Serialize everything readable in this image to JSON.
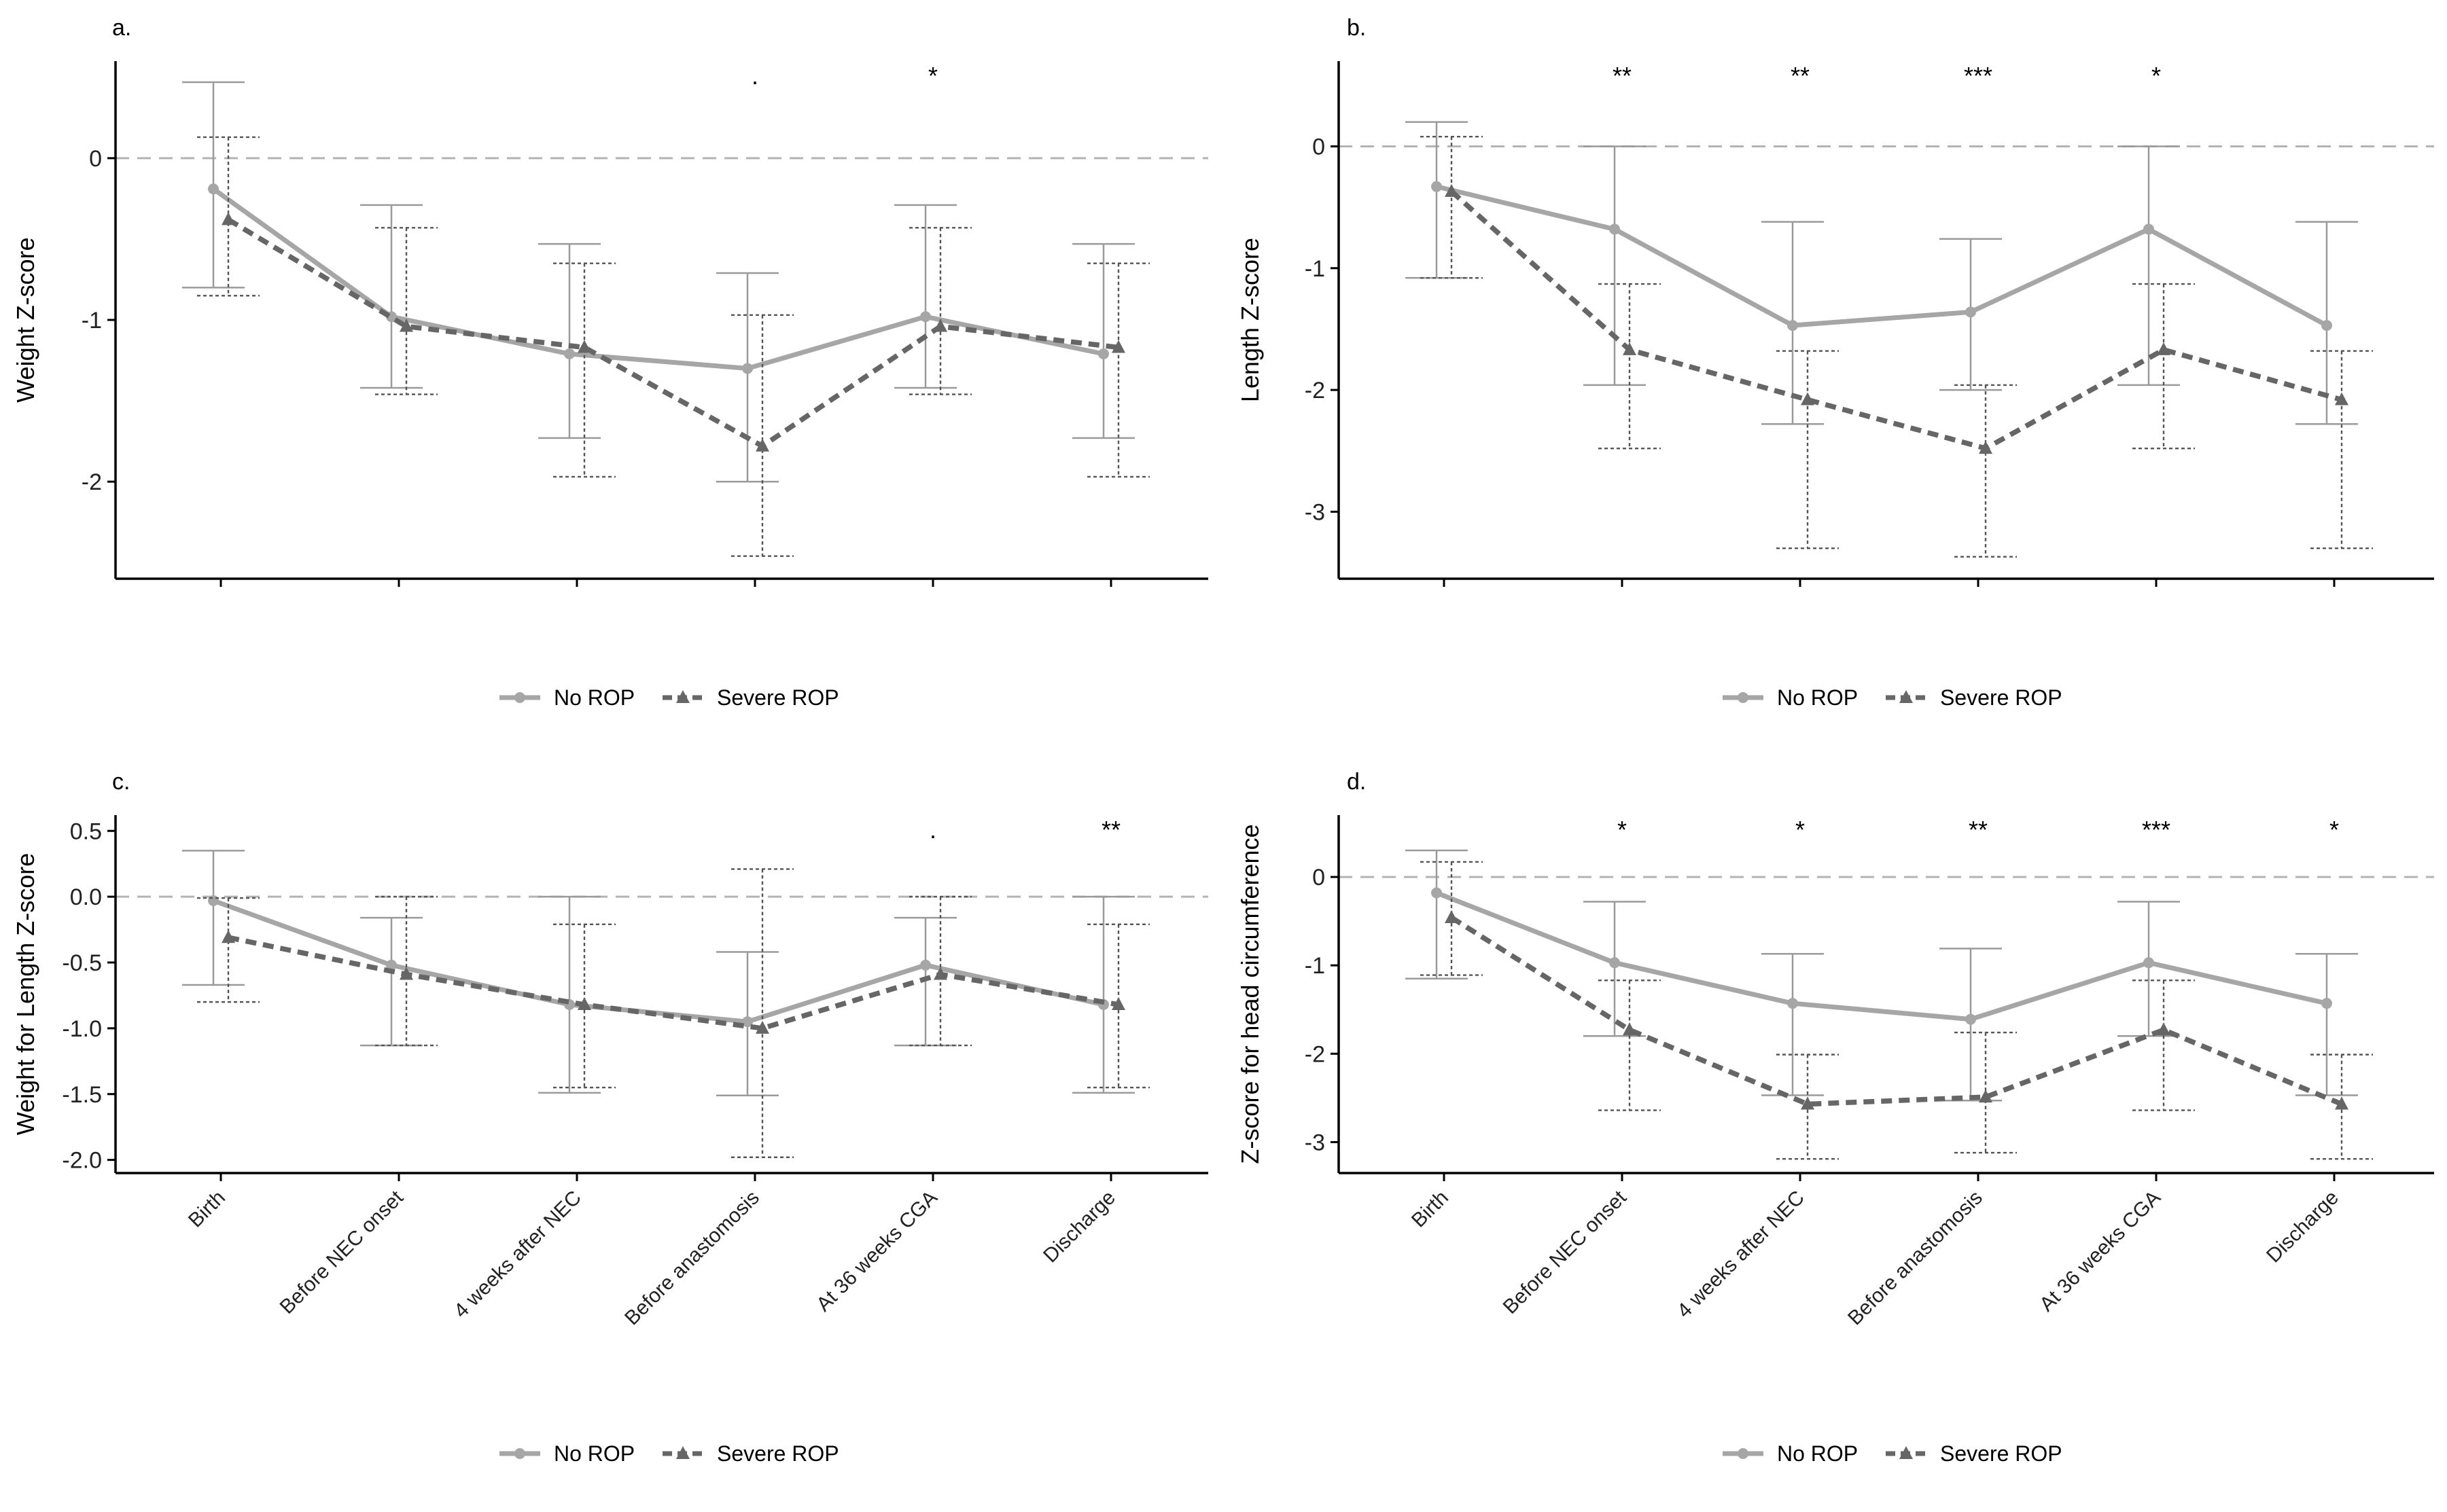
{
  "colors": {
    "no_rop": "#a6a6a6",
    "severe_rop": "#666666",
    "axis": "#000000",
    "reference_line": "#b3b3b3"
  },
  "legend": {
    "series": [
      {
        "label": "No ROP",
        "line": "solid",
        "marker": "circle"
      },
      {
        "label": "Severe ROP",
        "line": "dashed",
        "marker": "triangle"
      }
    ],
    "position": "bottom"
  },
  "chart_data": [
    {
      "panel_label": "a.",
      "type": "line",
      "ylabel": "Weight Z-score",
      "ylim": [
        -2.6,
        0.6
      ],
      "yticks": [
        -2,
        -1,
        0
      ],
      "ytick_labels": [
        "-2",
        "-1",
        "0"
      ],
      "reference_line_y": 0,
      "categories": [
        "Birth",
        "Before NEC onset",
        "4 weeks after NEC",
        "Before anastomosis",
        "At 36 weeks CGA",
        "Discharge"
      ],
      "show_xtick_labels": false,
      "significance": [
        "",
        "",
        "",
        ".",
        "*",
        ""
      ],
      "series": [
        {
          "name": "No ROP",
          "values": [
            -0.19,
            -0.98,
            -1.21,
            -1.3,
            -0.98,
            -1.21
          ],
          "lower": [
            -0.8,
            -1.42,
            -1.73,
            -2.0,
            -1.42,
            -1.73
          ],
          "upper": [
            0.47,
            -0.29,
            -0.53,
            -0.71,
            -0.29,
            -0.53
          ]
        },
        {
          "name": "Severe ROP",
          "values": [
            -0.38,
            -1.04,
            -1.17,
            -1.78,
            -1.04,
            -1.17
          ],
          "lower": [
            -0.85,
            -1.46,
            -1.97,
            -2.46,
            -1.46,
            -1.97
          ],
          "upper": [
            0.13,
            -0.43,
            -0.65,
            -0.97,
            -0.43,
            -0.65
          ]
        }
      ]
    },
    {
      "panel_label": "b.",
      "type": "line",
      "ylabel": "Length Z-score",
      "ylim": [
        -3.55,
        0.7
      ],
      "yticks": [
        -3,
        -2,
        -1,
        0
      ],
      "ytick_labels": [
        "-3",
        "-2",
        "-1",
        "0"
      ],
      "reference_line_y": 0,
      "categories": [
        "Birth",
        "Before NEC onset",
        "4 weeks after NEC",
        "Before anastomosis",
        "At 36 weeks CGA",
        "Discharge"
      ],
      "show_xtick_labels": false,
      "significance": [
        "",
        "**",
        "**",
        "***",
        "*",
        ""
      ],
      "series": [
        {
          "name": "No ROP",
          "values": [
            -0.33,
            -0.68,
            -1.47,
            -1.36,
            -0.68,
            -1.47
          ],
          "lower": [
            -1.08,
            -1.96,
            -2.28,
            -2.0,
            -1.96,
            -2.28
          ],
          "upper": [
            0.2,
            0.0,
            -0.62,
            -0.76,
            0.0,
            -0.62
          ]
        },
        {
          "name": "Severe ROP",
          "values": [
            -0.37,
            -1.67,
            -2.08,
            -2.48,
            -1.67,
            -2.08
          ],
          "lower": [
            -1.08,
            -2.48,
            -3.3,
            -3.37,
            -2.48,
            -3.3
          ],
          "upper": [
            0.08,
            -1.13,
            -1.68,
            -1.96,
            -1.13,
            -1.68
          ]
        }
      ]
    },
    {
      "panel_label": "c.",
      "type": "line",
      "ylabel": "Weight for Length Z-score",
      "ylim": [
        -2.1,
        0.62
      ],
      "yticks": [
        -2.0,
        -1.5,
        -1.0,
        -0.5,
        0.0,
        0.5
      ],
      "ytick_labels": [
        "-2.0",
        "-1.5",
        "-1.0",
        "-0.5",
        "0.0",
        "0.5"
      ],
      "reference_line_y": 0,
      "categories": [
        "Birth",
        "Before NEC onset",
        "4 weeks after NEC",
        "Before anastomosis",
        "At 36 weeks CGA",
        "Discharge"
      ],
      "show_xtick_labels": true,
      "significance": [
        "",
        "",
        "",
        "",
        ".",
        "**"
      ],
      "series": [
        {
          "name": "No ROP",
          "values": [
            -0.03,
            -0.52,
            -0.82,
            -0.95,
            -0.52,
            -0.82
          ],
          "lower": [
            -0.67,
            -1.13,
            -1.49,
            -1.51,
            -1.13,
            -1.49
          ],
          "upper": [
            0.35,
            -0.16,
            0.0,
            -0.42,
            -0.16,
            0.0
          ]
        },
        {
          "name": "Severe ROP",
          "values": [
            -0.31,
            -0.59,
            -0.82,
            -1.0,
            -0.59,
            -0.82
          ],
          "lower": [
            -0.8,
            -1.13,
            -1.45,
            -1.98,
            -1.13,
            -1.45
          ],
          "upper": [
            -0.01,
            0.0,
            -0.21,
            0.21,
            0.0,
            -0.21
          ]
        }
      ]
    },
    {
      "panel_label": "d.",
      "type": "line",
      "ylabel": "Z-score for head circumference",
      "ylim": [
        -3.35,
        0.7
      ],
      "yticks": [
        -3,
        -2,
        -1,
        0
      ],
      "ytick_labels": [
        "-3",
        "-2",
        "-1",
        "0"
      ],
      "reference_line_y": 0,
      "categories": [
        "Birth",
        "Before NEC onset",
        "4 weeks after NEC",
        "Before anastomosis",
        "At 36 weeks CGA",
        "Discharge"
      ],
      "show_xtick_labels": true,
      "significance": [
        "",
        "*",
        "*",
        "**",
        "***",
        "*"
      ],
      "series": [
        {
          "name": "No ROP",
          "values": [
            -0.18,
            -0.97,
            -1.43,
            -1.61,
            -0.97,
            -1.43
          ],
          "lower": [
            -1.15,
            -1.8,
            -2.47,
            -2.53,
            -1.8,
            -2.47
          ],
          "upper": [
            0.3,
            -0.28,
            -0.87,
            -0.81,
            -0.28,
            -0.87
          ]
        },
        {
          "name": "Severe ROP",
          "values": [
            -0.46,
            -1.73,
            -2.57,
            -2.49,
            -1.73,
            -2.57
          ],
          "lower": [
            -1.11,
            -2.64,
            -3.19,
            -3.12,
            -2.64,
            -3.19
          ],
          "upper": [
            0.17,
            -1.17,
            -2.01,
            -1.76,
            -1.17,
            -2.01
          ]
        }
      ]
    }
  ]
}
